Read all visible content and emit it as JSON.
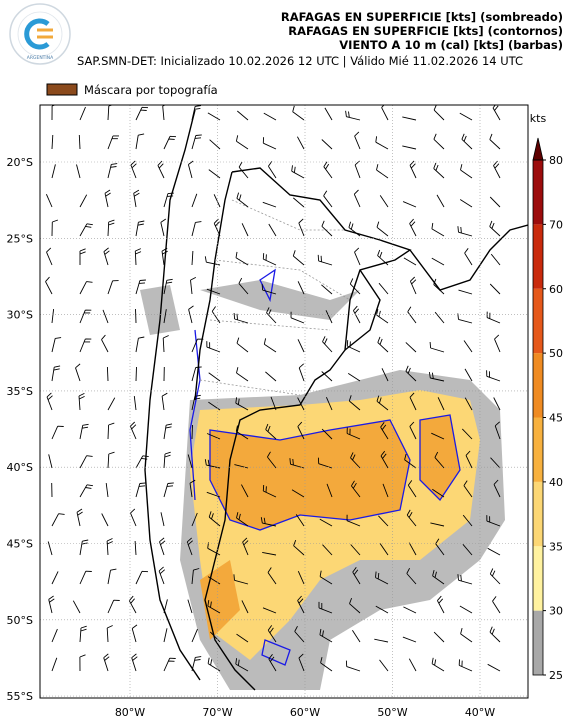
{
  "header": {
    "logo_text": "ARGENTINA",
    "title_lines": [
      "RAFAGAS EN SUPERFICIE [kts] (sombreado)",
      "RAFAGAS EN SUPERFICIE [kts] (contornos)",
      "VIENTO A 10 m (cal) [kts] (barbas)"
    ],
    "subtitle": "SAP.SMN-DET: Inicializado 10.02.2026 12 UTC | Válido Mié 11.02.2026 14 UTC",
    "mask_legend": "Máscara por topografía",
    "mask_color": "#8b4a1c"
  },
  "map": {
    "lat_labels": [
      "20°S",
      "25°S",
      "30°S",
      "35°S",
      "40°S",
      "45°S",
      "50°S",
      "55°S"
    ],
    "lon_labels": [
      "80°W",
      "70°W",
      "60°W",
      "50°W",
      "40°W"
    ]
  },
  "colorbar": {
    "unit": "kts",
    "levels": [
      25,
      30,
      35,
      40,
      45,
      50,
      60,
      70,
      80
    ],
    "colors": [
      "#a8a8a8",
      "#fff2a0",
      "#fcd775",
      "#f7b13f",
      "#ef8b22",
      "#e5581a",
      "#c92a0c",
      "#9c0c0c"
    ],
    "extend_color": "#5e0000"
  }
}
